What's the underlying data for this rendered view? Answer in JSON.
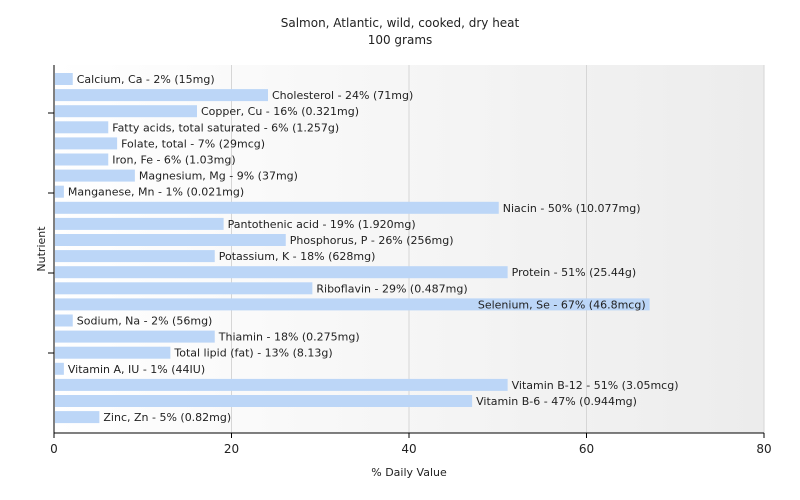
{
  "chart_data": {
    "type": "bar",
    "orientation": "horizontal",
    "title": "Salmon, Atlantic, wild, cooked, dry heat",
    "subtitle": "100 grams",
    "xlabel": "% Daily Value",
    "ylabel": "Nutrient",
    "xlim": [
      0,
      80
    ],
    "xticks": [
      0,
      20,
      40,
      60,
      80
    ],
    "grid": true,
    "bar_color": "#bcd6f7",
    "bars": [
      {
        "name": "Calcium, Ca",
        "value": 2,
        "label": "Calcium, Ca - 2% (15mg)"
      },
      {
        "name": "Cholesterol",
        "value": 24,
        "label": "Cholesterol - 24% (71mg)"
      },
      {
        "name": "Copper, Cu",
        "value": 16,
        "label": "Copper, Cu - 16% (0.321mg)"
      },
      {
        "name": "Fatty acids, total saturated",
        "value": 6,
        "label": "Fatty acids, total saturated - 6% (1.257g)"
      },
      {
        "name": "Folate, total",
        "value": 7,
        "label": "Folate, total - 7% (29mcg)"
      },
      {
        "name": "Iron, Fe",
        "value": 6,
        "label": "Iron, Fe - 6% (1.03mg)"
      },
      {
        "name": "Magnesium, Mg",
        "value": 9,
        "label": "Magnesium, Mg - 9% (37mg)"
      },
      {
        "name": "Manganese, Mn",
        "value": 1,
        "label": "Manganese, Mn - 1% (0.021mg)"
      },
      {
        "name": "Niacin",
        "value": 50,
        "label": "Niacin - 50% (10.077mg)"
      },
      {
        "name": "Pantothenic acid",
        "value": 19,
        "label": "Pantothenic acid - 19% (1.920mg)"
      },
      {
        "name": "Phosphorus, P",
        "value": 26,
        "label": "Phosphorus, P - 26% (256mg)"
      },
      {
        "name": "Potassium, K",
        "value": 18,
        "label": "Potassium, K - 18% (628mg)"
      },
      {
        "name": "Protein",
        "value": 51,
        "label": "Protein - 51% (25.44g)"
      },
      {
        "name": "Riboflavin",
        "value": 29,
        "label": "Riboflavin - 29% (0.487mg)"
      },
      {
        "name": "Selenium, Se",
        "value": 67,
        "label": "Selenium, Se - 67% (46.8mcg)"
      },
      {
        "name": "Sodium, Na",
        "value": 2,
        "label": "Sodium, Na - 2% (56mg)"
      },
      {
        "name": "Thiamin",
        "value": 18,
        "label": "Thiamin - 18% (0.275mg)"
      },
      {
        "name": "Total lipid (fat)",
        "value": 13,
        "label": "Total lipid (fat) - 13% (8.13g)"
      },
      {
        "name": "Vitamin A, IU",
        "value": 1,
        "label": "Vitamin A, IU - 1% (44IU)"
      },
      {
        "name": "Vitamin B-12",
        "value": 51,
        "label": "Vitamin B-12 - 51% (3.05mcg)"
      },
      {
        "name": "Vitamin B-6",
        "value": 47,
        "label": "Vitamin B-6 - 47% (0.944mg)"
      },
      {
        "name": "Zinc, Zn",
        "value": 5,
        "label": "Zinc, Zn - 5% (0.82mg)"
      }
    ]
  }
}
